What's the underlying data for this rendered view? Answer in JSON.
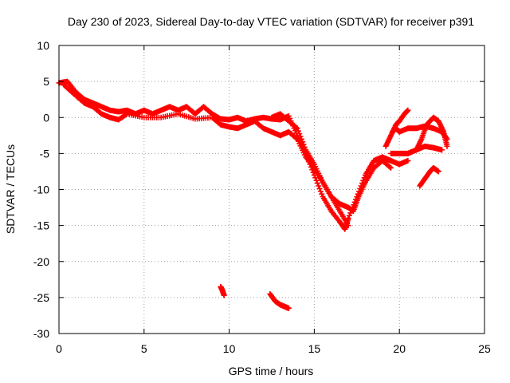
{
  "chart_data": {
    "type": "scatter",
    "title": "Day 230 of 2023, Sidereal Day-to-day VTEC variation (SDTVAR) for receiver p391",
    "xlabel": "GPS time / hours",
    "ylabel": "SDTVAR / TECUs",
    "xlim": [
      0,
      25
    ],
    "ylim": [
      -30,
      10
    ],
    "xticks": [
      0,
      5,
      10,
      15,
      20,
      25
    ],
    "yticks": [
      10,
      5,
      0,
      -5,
      -10,
      -15,
      -20,
      -25,
      -30
    ],
    "grid": true,
    "marker": "+",
    "color": "#ff0000",
    "series": [
      {
        "name": "main-trace-a",
        "points": [
          [
            0,
            4.8
          ],
          [
            0.5,
            5
          ],
          [
            1,
            3.5
          ],
          [
            1.5,
            2.5
          ],
          [
            2,
            2
          ],
          [
            2.5,
            1.5
          ],
          [
            3,
            1
          ],
          [
            3.5,
            0.8
          ],
          [
            4,
            1
          ],
          [
            4.5,
            0.5
          ],
          [
            5,
            1
          ],
          [
            5.5,
            0.5
          ],
          [
            6,
            1
          ],
          [
            6.5,
            1.5
          ],
          [
            7,
            1
          ],
          [
            7.5,
            1.5
          ],
          [
            8,
            0.5
          ],
          [
            8.5,
            1.5
          ],
          [
            9,
            0.5
          ],
          [
            9.5,
            -0.2
          ],
          [
            10,
            -0.3
          ],
          [
            10.5,
            0
          ],
          [
            11,
            -0.5
          ],
          [
            11.5,
            -0.2
          ],
          [
            12,
            0
          ],
          [
            12.5,
            -0.2
          ],
          [
            13,
            -0.3
          ],
          [
            13.5,
            0.2
          ],
          [
            14,
            -2.5
          ],
          [
            14.5,
            -5
          ],
          [
            15,
            -8
          ],
          [
            15.5,
            -11
          ],
          [
            16,
            -13
          ],
          [
            16.5,
            -14.5
          ],
          [
            16.8,
            -15.5
          ],
          [
            17,
            -14
          ],
          [
            17.5,
            -11
          ],
          [
            18,
            -8
          ],
          [
            18.5,
            -6
          ],
          [
            19,
            -5.5
          ],
          [
            19.5,
            -6
          ]
        ]
      },
      {
        "name": "main-trace-b",
        "points": [
          [
            0.3,
            4.5
          ],
          [
            1,
            3
          ],
          [
            1.5,
            2
          ],
          [
            2,
            1.5
          ],
          [
            2.5,
            0.5
          ],
          [
            3,
            0
          ],
          [
            3.5,
            -0.3
          ],
          [
            4,
            0.5
          ],
          [
            5,
            0
          ],
          [
            6,
            0
          ],
          [
            7,
            0.5
          ],
          [
            8,
            -0.2
          ],
          [
            9,
            0
          ],
          [
            9.5,
            -1
          ],
          [
            10,
            -1.3
          ],
          [
            10.5,
            -1.5
          ],
          [
            11,
            -1
          ],
          [
            11.5,
            -0.5
          ],
          [
            12,
            -1.5
          ],
          [
            12.5,
            -2
          ],
          [
            13,
            -2.5
          ],
          [
            13.5,
            -2
          ],
          [
            14,
            -3
          ],
          [
            14.5,
            -5.5
          ],
          [
            15,
            -7
          ],
          [
            15.5,
            -9
          ],
          [
            16,
            -11
          ],
          [
            16.5,
            -13
          ],
          [
            17,
            -15
          ]
        ]
      },
      {
        "name": "main-trace-c",
        "points": [
          [
            12.5,
            0
          ],
          [
            13,
            0.5
          ],
          [
            13.5,
            -0.5
          ],
          [
            14,
            -1.5
          ],
          [
            14.5,
            -4.5
          ],
          [
            15,
            -6.5
          ],
          [
            15.5,
            -9
          ],
          [
            16,
            -11
          ],
          [
            16.5,
            -12
          ],
          [
            17,
            -12.5
          ],
          [
            17.3,
            -13
          ],
          [
            17.6,
            -11
          ],
          [
            18,
            -9
          ],
          [
            18.5,
            -7
          ],
          [
            19,
            -6
          ],
          [
            19.5,
            -7
          ]
        ]
      },
      {
        "name": "late-trace-1",
        "points": [
          [
            19.6,
            -2
          ],
          [
            19.8,
            -1.5
          ],
          [
            20,
            -2
          ],
          [
            20.5,
            -1.5
          ],
          [
            21,
            -1.5
          ],
          [
            21.5,
            -1.2
          ],
          [
            22,
            -1.5
          ],
          [
            22.5,
            -2
          ],
          [
            22.8,
            -3
          ]
        ]
      },
      {
        "name": "late-trace-2",
        "points": [
          [
            19.2,
            -4
          ],
          [
            19.5,
            -2.5
          ],
          [
            19.8,
            -1
          ],
          [
            20,
            -0.5
          ],
          [
            20.3,
            0.5
          ],
          [
            20.5,
            1
          ]
        ]
      },
      {
        "name": "late-trace-3",
        "points": [
          [
            19.5,
            -5
          ],
          [
            20,
            -5
          ],
          [
            20.5,
            -5
          ],
          [
            21,
            -4.5
          ],
          [
            21.3,
            -3
          ],
          [
            21.6,
            -1
          ],
          [
            22,
            0
          ],
          [
            22.3,
            -0.5
          ],
          [
            22.6,
            -2
          ],
          [
            22.8,
            -4
          ]
        ]
      },
      {
        "name": "late-trace-4",
        "points": [
          [
            18,
            -8
          ],
          [
            18.5,
            -6
          ],
          [
            19,
            -5.5
          ],
          [
            19.5,
            -6
          ],
          [
            20,
            -6.5
          ],
          [
            20.5,
            -6
          ]
        ]
      },
      {
        "name": "late-trace-5",
        "points": [
          [
            20.5,
            -5
          ],
          [
            21,
            -4.5
          ],
          [
            21.5,
            -4
          ],
          [
            22,
            -4.2
          ],
          [
            22.5,
            -4.5
          ]
        ]
      },
      {
        "name": "late-trace-6",
        "points": [
          [
            21.2,
            -9.5
          ],
          [
            21.5,
            -8.5
          ],
          [
            21.8,
            -7.5
          ],
          [
            22,
            -7
          ],
          [
            22.3,
            -7.5
          ]
        ]
      },
      {
        "name": "low-segment-1",
        "points": [
          [
            9.5,
            -23.5
          ],
          [
            9.6,
            -24
          ],
          [
            9.7,
            -24.7
          ]
        ]
      },
      {
        "name": "low-segment-2",
        "points": [
          [
            12.4,
            -24.5
          ],
          [
            12.7,
            -25.5
          ],
          [
            13,
            -26
          ],
          [
            13.3,
            -26.3
          ],
          [
            13.5,
            -26.5
          ]
        ]
      }
    ]
  }
}
